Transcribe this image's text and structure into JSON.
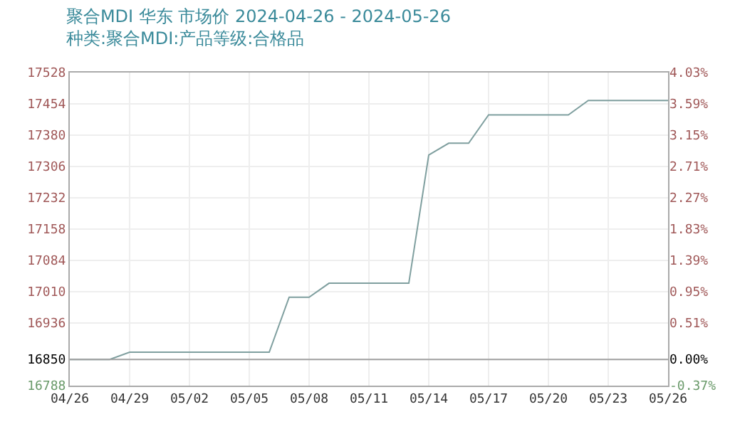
{
  "chart_data": {
    "type": "line",
    "title": "聚合MDI 华东 市场价 2024-04-26 - 2024-05-26",
    "subtitle": "种类:聚合MDI:产品等级:合格品",
    "x": [
      "2024-04-26",
      "2024-04-28",
      "2024-04-29",
      "2024-05-06",
      "2024-05-07",
      "2024-05-08",
      "2024-05-09",
      "2024-05-13",
      "2024-05-14",
      "2024-05-15",
      "2024-05-16",
      "2024-05-17",
      "2024-05-21",
      "2024-05-22",
      "2024-05-26"
    ],
    "series": [
      {
        "color": "#7f9f9f",
        "values": [
          16850,
          16850,
          16867,
          16867,
          16997,
          16997,
          17030,
          17030,
          17333,
          17361,
          17361,
          17428,
          17428,
          17462,
          17462
        ]
      }
    ],
    "xlim": [
      "2024-04-26",
      "2024-05-26"
    ],
    "xticks": [
      {
        "value": "2024-04-26",
        "label": "04/26"
      },
      {
        "value": "2024-04-29",
        "label": "04/29"
      },
      {
        "value": "2024-05-02",
        "label": "05/02"
      },
      {
        "value": "2024-05-05",
        "label": "05/05"
      },
      {
        "value": "2024-05-08",
        "label": "05/08"
      },
      {
        "value": "2024-05-11",
        "label": "05/11"
      },
      {
        "value": "2024-05-14",
        "label": "05/14"
      },
      {
        "value": "2024-05-17",
        "label": "05/17"
      },
      {
        "value": "2024-05-20",
        "label": "05/20"
      },
      {
        "value": "2024-05-23",
        "label": "05/23"
      },
      {
        "value": "2024-05-26",
        "label": "05/26"
      }
    ],
    "ylim": [
      16788,
      17528
    ],
    "yticks": [
      16788,
      16850,
      16936,
      17010,
      17084,
      17158,
      17232,
      17306,
      17380,
      17454,
      17528
    ],
    "y2lim": [
      -0.37,
      4.03
    ],
    "y2ticks": [
      {
        "value": -0.37,
        "label": "-0.37%"
      },
      {
        "value": 0,
        "label": "0.00%"
      },
      {
        "value": 0.51,
        "label": "0.51%"
      },
      {
        "value": 0.95,
        "label": "0.95%"
      },
      {
        "value": 1.39,
        "label": "1.39%"
      },
      {
        "value": 1.83,
        "label": "1.83%"
      },
      {
        "value": 2.27,
        "label": "2.27%"
      },
      {
        "value": 2.71,
        "label": "2.71%"
      },
      {
        "value": 3.15,
        "label": "3.15%"
      },
      {
        "value": 3.59,
        "label": "3.59%"
      },
      {
        "value": 4.03,
        "label": "4.03%"
      }
    ],
    "ref_lines": [
      {
        "axis": "y",
        "value": 16850,
        "color": "#a0a0a0"
      }
    ],
    "grid": true,
    "legend": false,
    "marker": "none",
    "line_style": "solid"
  }
}
